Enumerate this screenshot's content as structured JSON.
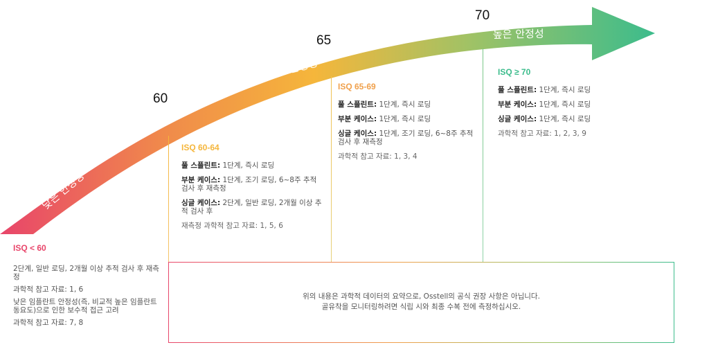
{
  "arrow": {
    "label_low": "낮은 안정성",
    "label_mid": "중간 안정성",
    "label_high": "높은 안정성",
    "ticks": [
      "60",
      "65",
      "70"
    ],
    "colors": {
      "start": "#e8456a",
      "mid_orange": "#f08a4b",
      "mid_yellow": "#f5b63b",
      "end": "#3cbc8c"
    }
  },
  "columns": [
    {
      "header": "ISQ < 60",
      "header_color": "#e8456a",
      "rows": [
        {
          "text": "2단계, 일반 로딩, 2개월 이상 추적 검사 후 재측정"
        },
        {
          "text": "과학적 참고 자료: 1, 6"
        },
        {
          "text": "낮은 임플란트 안정성(즉, 비교적 높은 임플란트 동요도)으로 인한 보수적 접근 고려"
        },
        {
          "text": "과학적 참고 자료: 7, 8"
        }
      ]
    },
    {
      "header": "ISQ 60-64",
      "header_color": "#f5b63b",
      "rows": [
        {
          "label": "풀 스플린트:",
          "text": " 1단계, 즉시 로딩"
        },
        {
          "label": "부분 케이스:",
          "text": " 1단계, 조기 로딩, 6~8주 추적 검사 후 재측정"
        },
        {
          "label": "싱글 케이스:",
          "text": " 2단계, 일반 로딩, 2개월 이상 추적 검사 후"
        }
      ],
      "ref": "재측정 과학적 참고 자료: 1, 5, 6"
    },
    {
      "header": "ISQ 65-69",
      "header_color": "#f0a04b",
      "rows": [
        {
          "label": "풀 스플린트:",
          "text": " 1단계, 즉시 로딩"
        },
        {
          "label": "부분 케이스:",
          "text": " 1단계, 즉시 로딩"
        },
        {
          "label": "싱글 케이스:",
          "text": " 1단계, 조기 로딩, 6~8주 추적 검사 후 재측정"
        }
      ],
      "ref": "과학적 참고 자료: 1, 3, 4"
    },
    {
      "header": "ISQ ≥ 70",
      "header_color": "#3cbc8c",
      "rows": [
        {
          "label": "풀 스플린트:",
          "text": " 1단계, 즉시 로딩"
        },
        {
          "label": "부분 케이스:",
          "text": " 1단계, 즉시 로딩"
        },
        {
          "label": "싱글 케이스:",
          "text": " 1단계, 즉시 로딩"
        }
      ],
      "ref": "과학적 참고 자료: 1, 2, 3, 9"
    }
  ],
  "note": {
    "line1": "위의 내용은 과학적 데이터의 요약으로, Osstell의 공식 권장 사항은 아닙니다.",
    "line2": "골유착을 모니터링하려면 식립 시와 최종 수복 전에 측정하십시오."
  }
}
